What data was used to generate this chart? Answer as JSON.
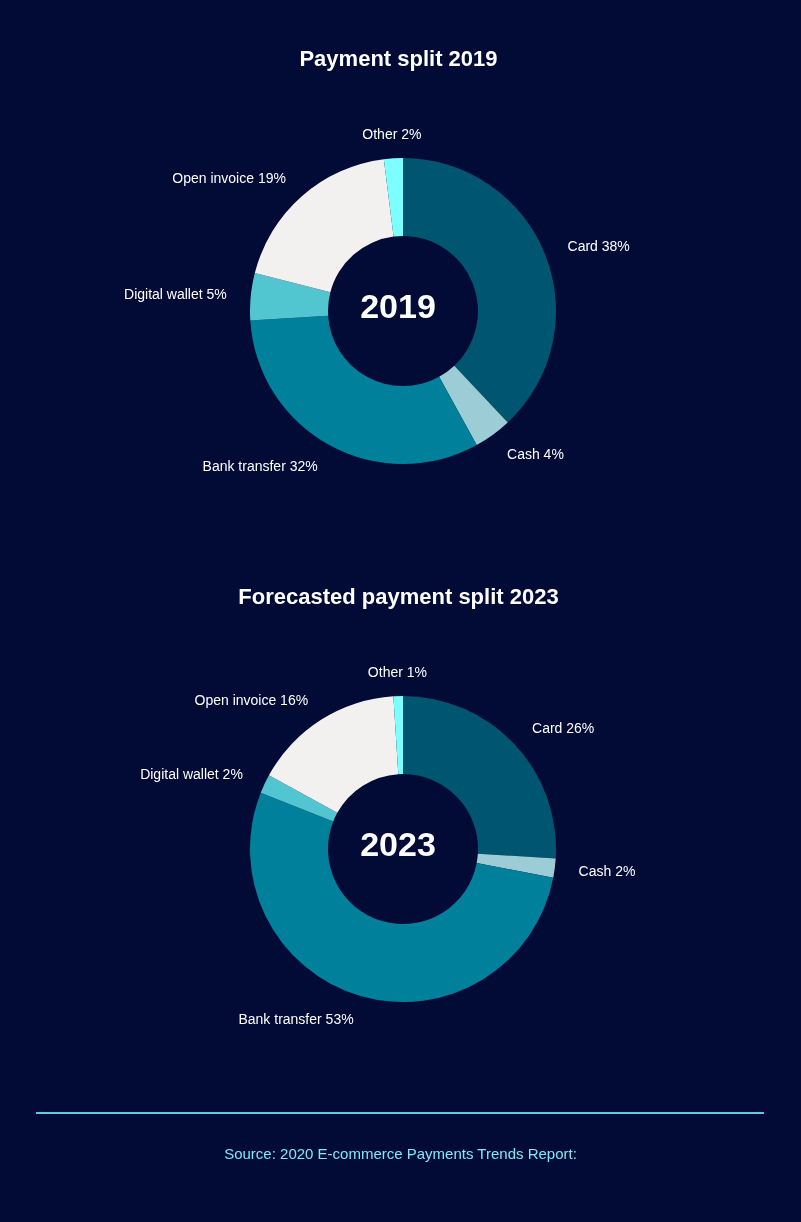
{
  "chart_data": [
    {
      "type": "donut",
      "title": "Payment split 2019",
      "categories": [
        "Card",
        "Cash",
        "Bank transfer",
        "Digital wallet",
        "Open invoice",
        "Other"
      ],
      "values": [
        38,
        4,
        32,
        5,
        19,
        2
      ],
      "value_labels": [
        "38%",
        "4%",
        "32%",
        "5%",
        "19%",
        "2%"
      ],
      "colors": [
        "#005670",
        "#9ccdd6",
        "#00809a",
        "#52c6d0",
        "#f2f1f0",
        "#7dffff"
      ],
      "annotations": [
        "2019"
      ]
    },
    {
      "type": "donut",
      "title": "Forecasted payment split 2023",
      "categories": [
        "Card",
        "Cash",
        "Bank transfer",
        "Digital wallet",
        "Open invoice",
        "Other"
      ],
      "values": [
        26,
        2,
        53,
        2,
        16,
        1
      ],
      "value_labels": [
        "26%",
        "2%",
        "53%",
        "2%",
        "16%",
        "1%"
      ],
      "colors": [
        "#005670",
        "#9ccdd6",
        "#00809a",
        "#52c6d0",
        "#f2f1f0",
        "#7dffff"
      ],
      "annotations": [
        "2023",
        "Source: 2020 E-commerce Payments Trends Report:"
      ]
    }
  ]
}
